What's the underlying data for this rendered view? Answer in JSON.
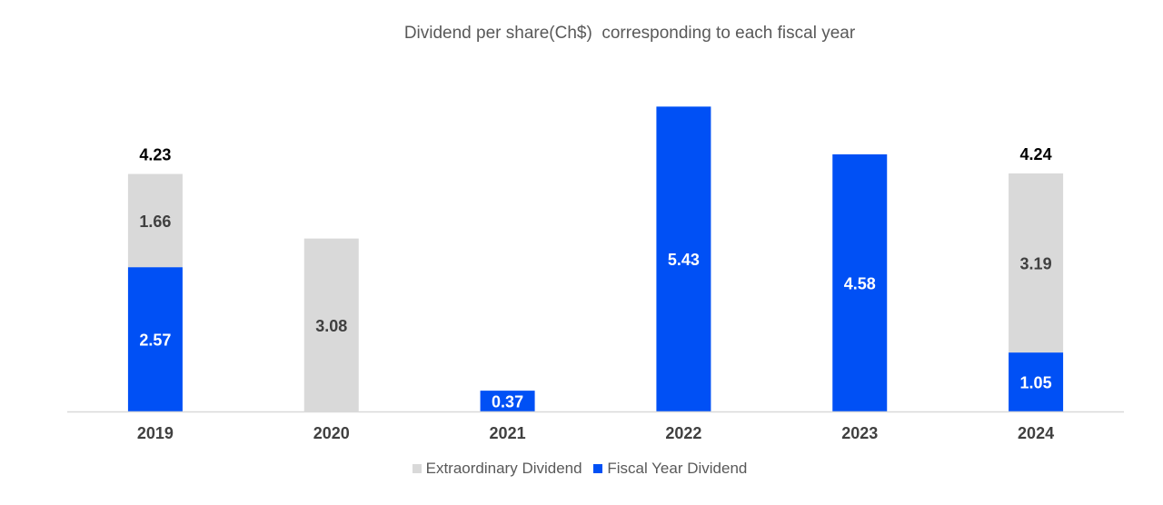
{
  "chart_data": {
    "type": "bar",
    "stacked": true,
    "title": "Dividend per share(Ch$)  corresponding to each fiscal year",
    "categories": [
      "2019",
      "2020",
      "2021",
      "2022",
      "2023",
      "2024"
    ],
    "series": [
      {
        "name": "Fiscal Year Dividend",
        "color": "#0050F5",
        "label_color": "#ffffff",
        "values": [
          2.57,
          null,
          0.37,
          5.43,
          4.58,
          1.05
        ]
      },
      {
        "name": "Extraordinary Dividend",
        "color": "#D9D9D9",
        "label_color": "#404040",
        "values": [
          1.66,
          3.08,
          null,
          null,
          null,
          3.19
        ]
      }
    ],
    "totals": [
      "4.23",
      null,
      null,
      null,
      null,
      "4.24"
    ],
    "legend_position": "bottom",
    "gridlines": false,
    "ylim": [
      0,
      5.63
    ]
  }
}
